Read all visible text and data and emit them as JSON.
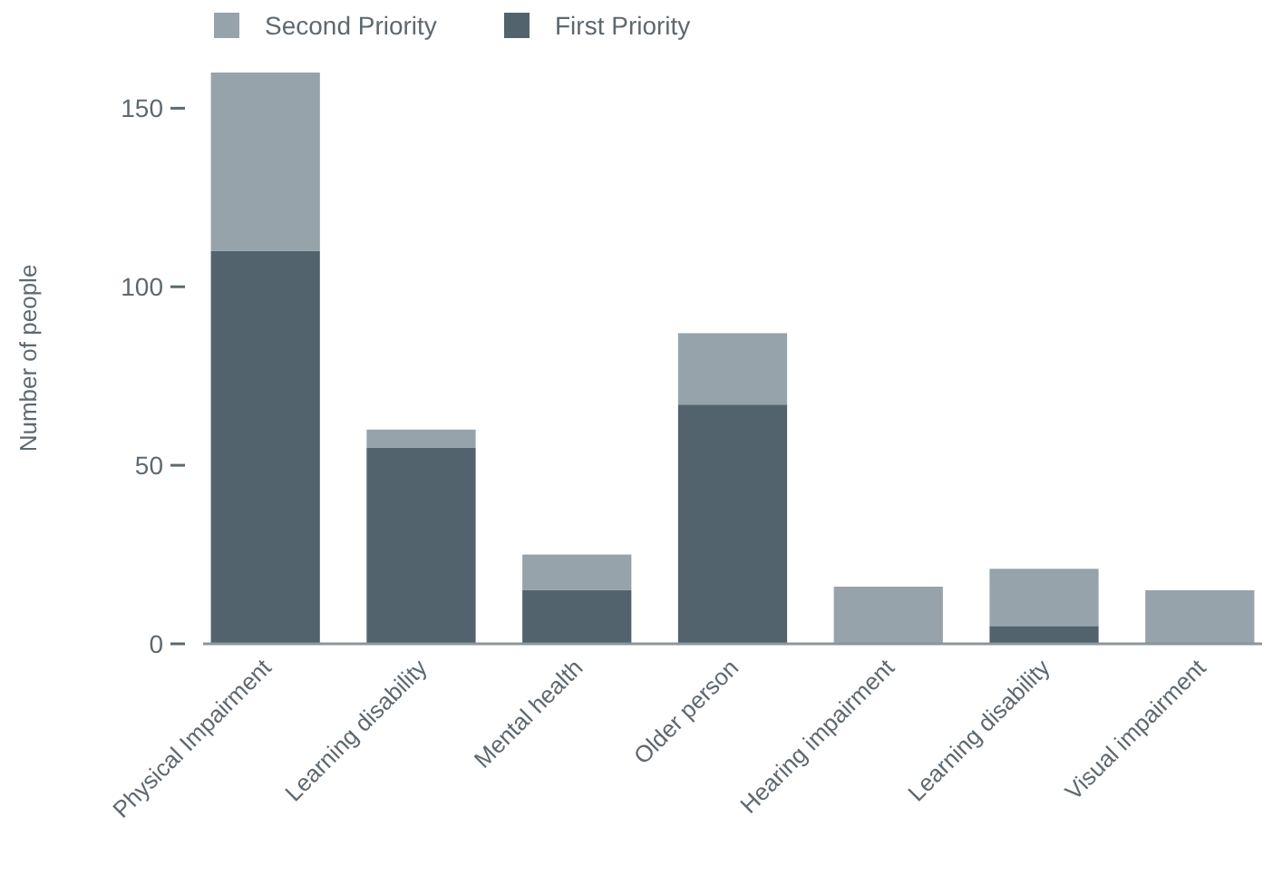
{
  "chart_data": {
    "type": "bar",
    "stacked": true,
    "ylabel": "Number of people",
    "categories": [
      "Physical Impairment",
      "Learning disability",
      "Mental health",
      "Older person",
      "Hearing impairment",
      "Learning disability",
      "Visual impairment"
    ],
    "series": [
      {
        "name": "First Priority",
        "color": "#52636d",
        "values": [
          110,
          55,
          15,
          67,
          0,
          5,
          0
        ]
      },
      {
        "name": "Second Priority",
        "color": "#97a3ab",
        "values": [
          50,
          5,
          10,
          20,
          16,
          16,
          15
        ]
      }
    ],
    "ylim": [
      0,
      160
    ],
    "yticks": [
      0,
      50,
      100,
      150
    ],
    "legend": "top left",
    "grid": false
  }
}
